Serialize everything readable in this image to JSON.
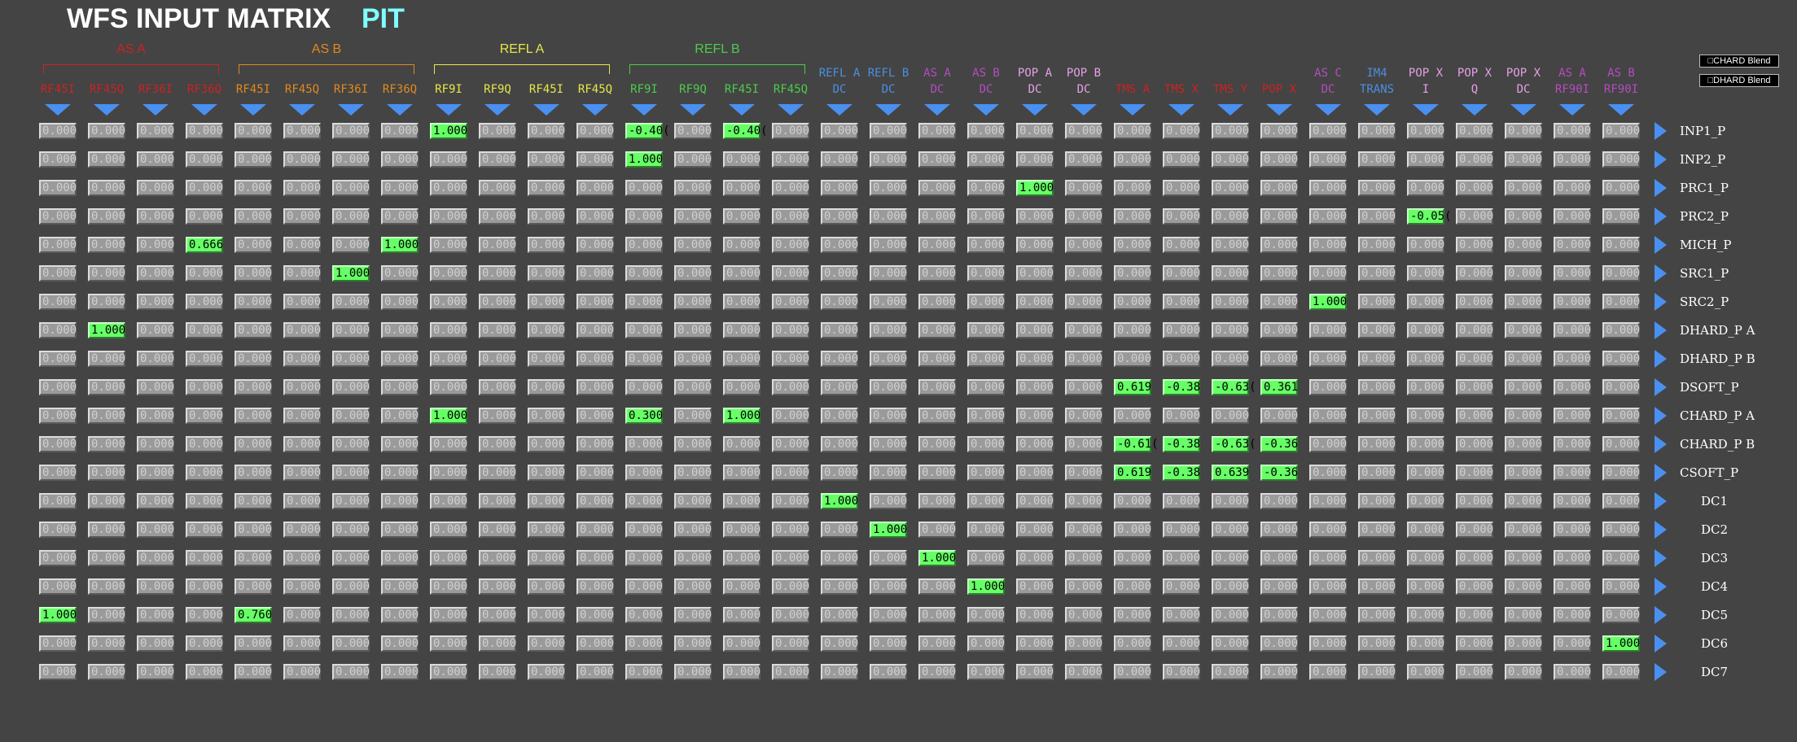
{
  "header": {
    "title": "WFS INPUT MATRIX",
    "subtitle": "PIT"
  },
  "buttons": [
    "□CHARD Blend",
    "□DHARD Blend"
  ],
  "groups": [
    {
      "label": "AS A",
      "color": "#cc2222"
    },
    {
      "label": "AS B",
      "color": "#e08a1e"
    },
    {
      "label": "REFL A",
      "color": "#e6e64a"
    },
    {
      "label": "REFL B",
      "color": "#4ccc4c"
    }
  ],
  "columns": [
    {
      "lines": [
        "",
        "RF45I"
      ],
      "color": "#cc2222"
    },
    {
      "lines": [
        "",
        "RF45Q"
      ],
      "color": "#cc2222"
    },
    {
      "lines": [
        "",
        "RF36I"
      ],
      "color": "#cc2222"
    },
    {
      "lines": [
        "",
        "RF36Q"
      ],
      "color": "#cc2222"
    },
    {
      "lines": [
        "",
        "RF45I"
      ],
      "color": "#e08a1e"
    },
    {
      "lines": [
        "",
        "RF45Q"
      ],
      "color": "#e08a1e"
    },
    {
      "lines": [
        "",
        "RF36I"
      ],
      "color": "#e08a1e"
    },
    {
      "lines": [
        "",
        "RF36Q"
      ],
      "color": "#e08a1e"
    },
    {
      "lines": [
        "",
        "RF9I"
      ],
      "color": "#e6e64a"
    },
    {
      "lines": [
        "",
        "RF9Q"
      ],
      "color": "#e6e64a"
    },
    {
      "lines": [
        "",
        "RF45I"
      ],
      "color": "#e6e64a"
    },
    {
      "lines": [
        "",
        "RF45Q"
      ],
      "color": "#e6e64a"
    },
    {
      "lines": [
        "",
        "RF9I"
      ],
      "color": "#4ccc4c"
    },
    {
      "lines": [
        "",
        "RF9Q"
      ],
      "color": "#4ccc4c"
    },
    {
      "lines": [
        "",
        "RF45I"
      ],
      "color": "#4ccc4c"
    },
    {
      "lines": [
        "",
        "RF45Q"
      ],
      "color": "#4ccc4c"
    },
    {
      "lines": [
        "REFL A",
        "DC"
      ],
      "color": "#4a8fe0"
    },
    {
      "lines": [
        "REFL B",
        "DC"
      ],
      "color": "#4a8fe0"
    },
    {
      "lines": [
        "AS A",
        "DC"
      ],
      "color": "#b54cc0"
    },
    {
      "lines": [
        "AS B",
        "DC"
      ],
      "color": "#b54cc0"
    },
    {
      "lines": [
        "POP A",
        "DC"
      ],
      "color": "#e6a0e6"
    },
    {
      "lines": [
        "POP B",
        "DC"
      ],
      "color": "#e6a0e6"
    },
    {
      "lines": [
        "",
        "TMS A"
      ],
      "color": "#cc2222"
    },
    {
      "lines": [
        "",
        "TMS X"
      ],
      "color": "#cc2222"
    },
    {
      "lines": [
        "",
        "TMS Y"
      ],
      "color": "#cc2222"
    },
    {
      "lines": [
        "",
        "POP X"
      ],
      "color": "#cc2222"
    },
    {
      "lines": [
        "AS C",
        "DC"
      ],
      "color": "#b54cc0"
    },
    {
      "lines": [
        "IM4",
        "TRANS"
      ],
      "color": "#4a8fe0"
    },
    {
      "lines": [
        "POP X",
        "I"
      ],
      "color": "#e6a0e6"
    },
    {
      "lines": [
        "POP X",
        "Q"
      ],
      "color": "#e6a0e6"
    },
    {
      "lines": [
        "POP X",
        "DC"
      ],
      "color": "#e6a0e6"
    },
    {
      "lines": [
        "AS A",
        "RF90I"
      ],
      "color": "#b54cc0"
    },
    {
      "lines": [
        "AS B",
        "RF90I"
      ],
      "color": "#b54cc0"
    }
  ],
  "rows": [
    "INP1_P",
    "INP2_P",
    "PRC1_P",
    "PRC2_P",
    "MICH_P",
    "SRC1_P",
    "SRC2_P",
    "DHARD_P A",
    "DHARD_P B",
    "DSOFT_P",
    "CHARD_P A",
    "CHARD_P B",
    "CSOFT_P",
    "DC1",
    "DC2",
    "DC3",
    "DC4",
    "DC5",
    "DC6",
    "DC7"
  ],
  "matrix": {
    "default": "0.000",
    "nonzero": [
      {
        "row": 0,
        "col": 8,
        "value": "1.000"
      },
      {
        "row": 0,
        "col": 12,
        "value": "-0.40("
      },
      {
        "row": 0,
        "col": 14,
        "value": "-0.40("
      },
      {
        "row": 1,
        "col": 12,
        "value": "1.000"
      },
      {
        "row": 2,
        "col": 20,
        "value": "1.000"
      },
      {
        "row": 3,
        "col": 28,
        "value": "-0.05("
      },
      {
        "row": 4,
        "col": 3,
        "value": "0.666"
      },
      {
        "row": 4,
        "col": 7,
        "value": "1.000"
      },
      {
        "row": 5,
        "col": 6,
        "value": "1.000"
      },
      {
        "row": 6,
        "col": 26,
        "value": "1.000"
      },
      {
        "row": 7,
        "col": 1,
        "value": "1.000"
      },
      {
        "row": 9,
        "col": 22,
        "value": "0.619"
      },
      {
        "row": 9,
        "col": 23,
        "value": "-0.38"
      },
      {
        "row": 9,
        "col": 24,
        "value": "-0.63("
      },
      {
        "row": 9,
        "col": 25,
        "value": "0.361"
      },
      {
        "row": 10,
        "col": 8,
        "value": "1.000"
      },
      {
        "row": 10,
        "col": 12,
        "value": "0.300"
      },
      {
        "row": 10,
        "col": 14,
        "value": "1.000"
      },
      {
        "row": 11,
        "col": 22,
        "value": "-0.61("
      },
      {
        "row": 11,
        "col": 23,
        "value": "-0.38"
      },
      {
        "row": 11,
        "col": 24,
        "value": "-0.63("
      },
      {
        "row": 11,
        "col": 25,
        "value": "-0.36"
      },
      {
        "row": 12,
        "col": 22,
        "value": "0.619"
      },
      {
        "row": 12,
        "col": 23,
        "value": "-0.38"
      },
      {
        "row": 12,
        "col": 24,
        "value": "0.639"
      },
      {
        "row": 12,
        "col": 25,
        "value": "-0.36"
      },
      {
        "row": 13,
        "col": 16,
        "value": "1.000"
      },
      {
        "row": 14,
        "col": 17,
        "value": "1.000"
      },
      {
        "row": 15,
        "col": 18,
        "value": "1.000"
      },
      {
        "row": 16,
        "col": 19,
        "value": "1.000"
      },
      {
        "row": 17,
        "col": 0,
        "value": "1.000"
      },
      {
        "row": 17,
        "col": 4,
        "value": "0.760"
      },
      {
        "row": 18,
        "col": 32,
        "value": "1.000"
      }
    ]
  }
}
